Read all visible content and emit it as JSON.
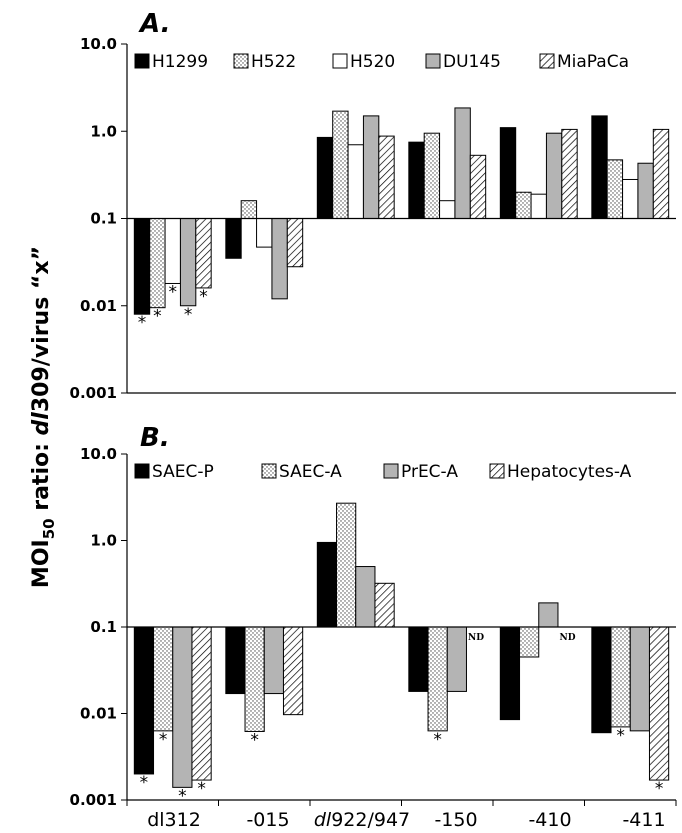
{
  "chart_data": [
    {
      "panel": "A.",
      "type": "bar",
      "yscale": "log",
      "ylim": [
        0.001,
        10
      ],
      "yticks": [
        "10.0",
        "1.0",
        "0.1",
        "0.01",
        "0.001"
      ],
      "categories": [
        "dl312",
        "-015",
        "dl922/947",
        "-150",
        "-410",
        "-411"
      ],
      "legend_position": "top",
      "series": [
        {
          "name": "H1299",
          "pattern": "solid",
          "values": [
            0.008,
            0.035,
            0.85,
            0.75,
            1.1,
            1.5
          ],
          "significant": [
            true,
            false,
            false,
            false,
            false,
            false
          ]
        },
        {
          "name": "H522",
          "pattern": "dots",
          "values": [
            0.0095,
            0.16,
            1.7,
            0.95,
            0.2,
            0.47
          ],
          "significant": [
            true,
            false,
            false,
            false,
            false,
            false
          ]
        },
        {
          "name": "H520",
          "pattern": "open",
          "values": [
            0.018,
            0.047,
            0.7,
            0.16,
            0.19,
            0.28
          ],
          "significant": [
            true,
            false,
            false,
            false,
            false,
            false
          ]
        },
        {
          "name": "DU145",
          "pattern": "gray",
          "values": [
            0.01,
            0.012,
            1.5,
            1.85,
            0.95,
            0.43
          ],
          "significant": [
            true,
            false,
            false,
            false,
            false,
            false
          ]
        },
        {
          "name": "MiaPaCa",
          "pattern": "hatch",
          "values": [
            0.016,
            0.028,
            0.88,
            0.53,
            1.05,
            1.05
          ],
          "significant": [
            true,
            false,
            false,
            false,
            false,
            false
          ]
        }
      ]
    },
    {
      "panel": "B.",
      "type": "bar",
      "yscale": "log",
      "ylim": [
        0.001,
        10
      ],
      "yticks": [
        "10.0",
        "1.0",
        "0.1",
        "0.01",
        "0.001"
      ],
      "categories": [
        "dl312",
        "-015",
        "dl922/947",
        "-150",
        "-410",
        "-411"
      ],
      "legend_position": "top",
      "series": [
        {
          "name": "SAEC-P",
          "pattern": "solid",
          "values": [
            0.002,
            0.017,
            0.95,
            0.018,
            0.0085,
            0.006
          ],
          "significant": [
            true,
            false,
            false,
            false,
            false,
            false
          ]
        },
        {
          "name": "SAEC-A",
          "pattern": "dots",
          "values": [
            0.0063,
            0.0062,
            2.7,
            0.0063,
            0.045,
            0.007
          ],
          "significant": [
            true,
            true,
            false,
            true,
            false,
            true
          ]
        },
        {
          "name": "PrEC-A",
          "pattern": "gray",
          "values": [
            0.0014,
            0.017,
            0.5,
            0.018,
            0.19,
            0.0063
          ],
          "significant": [
            true,
            false,
            false,
            false,
            false,
            false
          ]
        },
        {
          "name": "Hepatocytes-A",
          "pattern": "hatch",
          "values": [
            0.0017,
            0.0097,
            0.32,
            null,
            null,
            0.0017
          ],
          "significant": [
            true,
            false,
            false,
            false,
            false,
            true
          ]
        }
      ],
      "annotations": [
        {
          "text": "ND",
          "category": "-150",
          "series": "Hepatocytes-A"
        },
        {
          "text": "ND",
          "category": "-410",
          "series": "Hepatocytes-A"
        }
      ]
    }
  ],
  "y_axis_label": {
    "prefix": "MOI",
    "subscript": "50",
    "middle": " ratio: ",
    "italic_part": "dl",
    "rest": "309/virus “x”"
  },
  "x_tick_labels": {
    "dl312": "dl312",
    "-015": "-015",
    "dl922_italic": "dl",
    "dl922_rest": "922/947",
    "-150": "-150",
    "-410": "-410",
    "-411": "-411"
  },
  "significance_marker": "*",
  "colors": {
    "solid": "#000000",
    "gray": "#b4b4b4",
    "dots": "#ffffff",
    "open": "#ffffff",
    "hatch": "#ffffff"
  }
}
